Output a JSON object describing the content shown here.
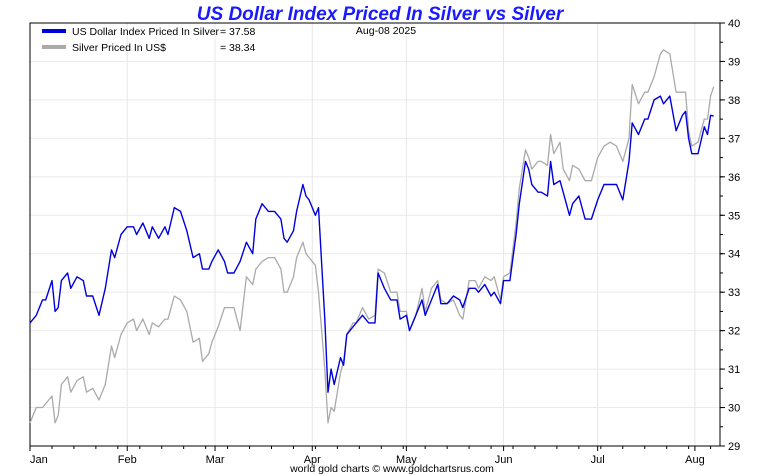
{
  "chart_data": {
    "type": "line",
    "title": "US Dollar Index Priced In Silver vs Silver",
    "date_label": "Aug-08  2025",
    "footer": "world gold charts © www.goldchartsrus.com",
    "xlabel": "",
    "ylabel": "",
    "ylim": [
      29,
      40
    ],
    "y_ticks": [
      "29",
      "30",
      "31",
      "32",
      "33",
      "34",
      "35",
      "36",
      "37",
      "38",
      "39",
      "40"
    ],
    "x_ticks": [
      "Jan",
      "Feb",
      "Mar",
      "Apr",
      "May",
      "Jun",
      "Jul",
      "Aug"
    ],
    "x_tick_days": [
      0,
      31,
      59,
      90,
      120,
      151,
      181,
      212
    ],
    "x_range_days": [
      0,
      220
    ],
    "legend": [
      {
        "name": "US Dollar Index Priced In Silver",
        "value_label": "= 37.58",
        "color": "#0000dd"
      },
      {
        "name": "Silver Priced In US$",
        "value_label": "= 38.34",
        "color": "#aaaaaa"
      }
    ],
    "series": [
      {
        "name": "US Dollar Index Priced In Silver",
        "color": "#0000dd",
        "points": [
          [
            0,
            32.2
          ],
          [
            2,
            32.4
          ],
          [
            4,
            32.8
          ],
          [
            5,
            32.8
          ],
          [
            7,
            33.3
          ],
          [
            8,
            32.5
          ],
          [
            9,
            32.6
          ],
          [
            10,
            33.3
          ],
          [
            12,
            33.5
          ],
          [
            13,
            33.1
          ],
          [
            15,
            33.4
          ],
          [
            17,
            33.3
          ],
          [
            18,
            32.9
          ],
          [
            20,
            32.9
          ],
          [
            22,
            32.4
          ],
          [
            24,
            33.1
          ],
          [
            26,
            34.1
          ],
          [
            27,
            33.9
          ],
          [
            29,
            34.5
          ],
          [
            31,
            34.7
          ],
          [
            33,
            34.7
          ],
          [
            34,
            34.5
          ],
          [
            36,
            34.8
          ],
          [
            38,
            34.4
          ],
          [
            39,
            34.7
          ],
          [
            41,
            34.4
          ],
          [
            43,
            34.7
          ],
          [
            44,
            34.5
          ],
          [
            46,
            35.2
          ],
          [
            48,
            35.1
          ],
          [
            50,
            34.6
          ],
          [
            52,
            33.9
          ],
          [
            54,
            34.0
          ],
          [
            55,
            33.6
          ],
          [
            57,
            33.6
          ],
          [
            58,
            33.8
          ],
          [
            60,
            34.1
          ],
          [
            62,
            33.8
          ],
          [
            63,
            33.5
          ],
          [
            65,
            33.5
          ],
          [
            67,
            33.8
          ],
          [
            69,
            34.3
          ],
          [
            71,
            34.0
          ],
          [
            72,
            34.9
          ],
          [
            74,
            35.3
          ],
          [
            76,
            35.1
          ],
          [
            78,
            35.1
          ],
          [
            80,
            34.9
          ],
          [
            81,
            34.4
          ],
          [
            82,
            34.3
          ],
          [
            84,
            34.6
          ],
          [
            85,
            35.1
          ],
          [
            87,
            35.8
          ],
          [
            88,
            35.5
          ],
          [
            89,
            35.4
          ],
          [
            91,
            35.0
          ],
          [
            92,
            35.2
          ],
          [
            94,
            32.3
          ],
          [
            95,
            30.4
          ],
          [
            96,
            31.0
          ],
          [
            97,
            30.6
          ],
          [
            99,
            31.3
          ],
          [
            100,
            31.1
          ],
          [
            101,
            31.9
          ],
          [
            103,
            32.1
          ],
          [
            104,
            32.2
          ],
          [
            106,
            32.4
          ],
          [
            108,
            32.2
          ],
          [
            110,
            32.2
          ],
          [
            111,
            33.5
          ],
          [
            113,
            33.1
          ],
          [
            115,
            32.8
          ],
          [
            117,
            32.8
          ],
          [
            118,
            32.3
          ],
          [
            120,
            32.4
          ],
          [
            121,
            32.0
          ],
          [
            123,
            32.4
          ],
          [
            125,
            32.8
          ],
          [
            126,
            32.4
          ],
          [
            128,
            32.8
          ],
          [
            130,
            33.2
          ],
          [
            131,
            32.7
          ],
          [
            133,
            32.7
          ],
          [
            135,
            32.9
          ],
          [
            137,
            32.8
          ],
          [
            138,
            32.6
          ],
          [
            140,
            33.1
          ],
          [
            142,
            33.1
          ],
          [
            143,
            33.0
          ],
          [
            145,
            33.2
          ],
          [
            147,
            32.9
          ],
          [
            148,
            33.0
          ],
          [
            150,
            32.7
          ],
          [
            151,
            33.3
          ],
          [
            153,
            33.3
          ],
          [
            155,
            34.5
          ],
          [
            156,
            35.3
          ],
          [
            158,
            36.4
          ],
          [
            159,
            36.2
          ],
          [
            160,
            35.8
          ],
          [
            162,
            35.6
          ],
          [
            163,
            35.6
          ],
          [
            165,
            35.5
          ],
          [
            166,
            36.4
          ],
          [
            167,
            35.8
          ],
          [
            169,
            35.9
          ],
          [
            170,
            35.6
          ],
          [
            172,
            35.0
          ],
          [
            173,
            35.3
          ],
          [
            175,
            35.5
          ],
          [
            177,
            34.9
          ],
          [
            179,
            34.9
          ],
          [
            181,
            35.4
          ],
          [
            183,
            35.8
          ],
          [
            185,
            35.8
          ],
          [
            187,
            35.8
          ],
          [
            189,
            35.4
          ],
          [
            191,
            36.4
          ],
          [
            192,
            37.4
          ],
          [
            194,
            37.1
          ],
          [
            196,
            37.5
          ],
          [
            197,
            37.5
          ],
          [
            199,
            38.0
          ],
          [
            201,
            38.1
          ],
          [
            202,
            37.9
          ],
          [
            204,
            38.1
          ],
          [
            206,
            37.2
          ],
          [
            208,
            37.6
          ],
          [
            209,
            37.7
          ],
          [
            210,
            37.0
          ],
          [
            211,
            36.6
          ],
          [
            213,
            36.6
          ],
          [
            215,
            37.3
          ],
          [
            216,
            37.1
          ],
          [
            217,
            37.6
          ],
          [
            218,
            37.58
          ]
        ]
      },
      {
        "name": "Silver Priced In US$",
        "color": "#aaaaaa",
        "points": [
          [
            0,
            29.6
          ],
          [
            2,
            30.0
          ],
          [
            4,
            30.0
          ],
          [
            5,
            30.1
          ],
          [
            7,
            30.3
          ],
          [
            8,
            29.6
          ],
          [
            9,
            29.8
          ],
          [
            10,
            30.6
          ],
          [
            12,
            30.8
          ],
          [
            13,
            30.4
          ],
          [
            15,
            30.7
          ],
          [
            17,
            30.8
          ],
          [
            18,
            30.4
          ],
          [
            20,
            30.5
          ],
          [
            22,
            30.2
          ],
          [
            24,
            30.6
          ],
          [
            26,
            31.6
          ],
          [
            27,
            31.3
          ],
          [
            29,
            31.9
          ],
          [
            31,
            32.2
          ],
          [
            33,
            32.3
          ],
          [
            34,
            32.0
          ],
          [
            36,
            32.3
          ],
          [
            38,
            31.9
          ],
          [
            39,
            32.2
          ],
          [
            41,
            32.1
          ],
          [
            43,
            32.3
          ],
          [
            44,
            32.3
          ],
          [
            46,
            32.9
          ],
          [
            48,
            32.8
          ],
          [
            50,
            32.5
          ],
          [
            52,
            31.7
          ],
          [
            54,
            31.8
          ],
          [
            55,
            31.2
          ],
          [
            57,
            31.4
          ],
          [
            58,
            31.7
          ],
          [
            60,
            32.1
          ],
          [
            62,
            32.6
          ],
          [
            63,
            32.6
          ],
          [
            65,
            32.6
          ],
          [
            67,
            32.0
          ],
          [
            69,
            33.4
          ],
          [
            71,
            33.2
          ],
          [
            72,
            33.6
          ],
          [
            74,
            33.8
          ],
          [
            76,
            33.9
          ],
          [
            78,
            33.9
          ],
          [
            80,
            33.6
          ],
          [
            81,
            33.0
          ],
          [
            82,
            33.0
          ],
          [
            84,
            33.4
          ],
          [
            85,
            33.9
          ],
          [
            87,
            34.3
          ],
          [
            88,
            34.0
          ],
          [
            89,
            33.9
          ],
          [
            91,
            33.7
          ],
          [
            92,
            33.0
          ],
          [
            94,
            31.0
          ],
          [
            95,
            29.6
          ],
          [
            96,
            30.0
          ],
          [
            97,
            29.9
          ],
          [
            99,
            30.9
          ],
          [
            100,
            31.2
          ],
          [
            101,
            31.9
          ],
          [
            103,
            32.2
          ],
          [
            104,
            32.2
          ],
          [
            106,
            32.6
          ],
          [
            108,
            32.3
          ],
          [
            110,
            32.4
          ],
          [
            111,
            33.6
          ],
          [
            113,
            33.5
          ],
          [
            115,
            33.0
          ],
          [
            117,
            33.0
          ],
          [
            118,
            32.5
          ],
          [
            120,
            32.5
          ],
          [
            121,
            32.0
          ],
          [
            123,
            32.4
          ],
          [
            125,
            33.1
          ],
          [
            126,
            32.5
          ],
          [
            128,
            33.1
          ],
          [
            130,
            33.3
          ],
          [
            131,
            32.8
          ],
          [
            133,
            32.7
          ],
          [
            135,
            32.8
          ],
          [
            137,
            32.4
          ],
          [
            138,
            32.3
          ],
          [
            140,
            33.3
          ],
          [
            142,
            33.3
          ],
          [
            143,
            33.1
          ],
          [
            145,
            33.4
          ],
          [
            147,
            33.3
          ],
          [
            148,
            33.4
          ],
          [
            150,
            32.8
          ],
          [
            151,
            33.4
          ],
          [
            153,
            33.5
          ],
          [
            155,
            34.8
          ],
          [
            156,
            35.7
          ],
          [
            158,
            36.7
          ],
          [
            159,
            36.5
          ],
          [
            160,
            36.2
          ],
          [
            162,
            36.4
          ],
          [
            163,
            36.4
          ],
          [
            165,
            36.3
          ],
          [
            166,
            37.1
          ],
          [
            167,
            36.6
          ],
          [
            169,
            36.9
          ],
          [
            170,
            36.2
          ],
          [
            172,
            35.9
          ],
          [
            173,
            36.3
          ],
          [
            175,
            36.2
          ],
          [
            177,
            35.9
          ],
          [
            179,
            35.9
          ],
          [
            181,
            36.5
          ],
          [
            183,
            36.8
          ],
          [
            185,
            36.9
          ],
          [
            187,
            36.8
          ],
          [
            189,
            36.4
          ],
          [
            191,
            37.0
          ],
          [
            192,
            38.4
          ],
          [
            194,
            37.9
          ],
          [
            196,
            38.2
          ],
          [
            197,
            38.2
          ],
          [
            199,
            38.6
          ],
          [
            201,
            39.2
          ],
          [
            202,
            39.3
          ],
          [
            204,
            39.2
          ],
          [
            206,
            38.2
          ],
          [
            208,
            38.2
          ],
          [
            209,
            38.2
          ],
          [
            210,
            37.2
          ],
          [
            211,
            36.8
          ],
          [
            213,
            36.9
          ],
          [
            215,
            37.5
          ],
          [
            216,
            37.5
          ],
          [
            217,
            38.1
          ],
          [
            218,
            38.34
          ]
        ]
      }
    ]
  }
}
